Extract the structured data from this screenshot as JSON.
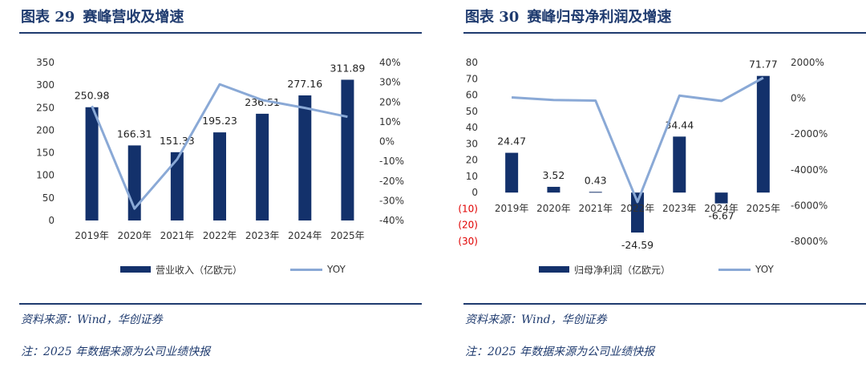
{
  "left": {
    "title_number": "图表 29",
    "title_text": "赛峰营收及增速",
    "legend_bar": "营业收入（亿欧元）",
    "legend_line": "YOY",
    "source": "资料来源：Wind，华创证券",
    "footnote": "注：2025 年数据来源为公司业绩快报"
  },
  "right": {
    "title_number": "图表 30",
    "title_text": "赛峰归母净利润及增速",
    "legend_bar": "归母净利润（亿欧元）",
    "legend_line": "YOY",
    "source": "资料来源：Wind，华创证券",
    "footnote": "注：2025 年数据来源为公司业绩快报"
  },
  "colors": {
    "bar": "#13316b",
    "line": "#8aa9d6",
    "title": "#1f3b6f",
    "negative_tick": "#e00000"
  },
  "chart_data": [
    {
      "type": "bar",
      "title": "赛峰营收及增速",
      "categories": [
        "2019年",
        "2020年",
        "2021年",
        "2022年",
        "2023年",
        "2024年",
        "2025年"
      ],
      "series": [
        {
          "name": "营业收入（亿欧元）",
          "type": "bar",
          "axis": "left",
          "values": [
            250.98,
            166.31,
            151.33,
            195.23,
            236.51,
            277.16,
            311.89
          ],
          "labels": [
            "250.98",
            "166.31",
            "151.33",
            "195.23",
            "236.51",
            "277.16",
            "311.89"
          ]
        },
        {
          "name": "YOY",
          "type": "line",
          "axis": "right",
          "values": [
            18,
            -34,
            -9,
            29,
            21,
            17,
            12.5
          ]
        }
      ],
      "y_left": {
        "min": 0,
        "max": 350,
        "ticks": [
          "0",
          "50",
          "100",
          "150",
          "200",
          "250",
          "300",
          "350"
        ]
      },
      "y_right": {
        "min": -40,
        "max": 40,
        "ticks": [
          "-40%",
          "-30%",
          "-20%",
          "-10%",
          "0%",
          "10%",
          "20%",
          "30%",
          "40%"
        ]
      },
      "legend": "bottom",
      "grid": false
    },
    {
      "type": "bar",
      "title": "赛峰归母净利润及增速",
      "categories": [
        "2019年",
        "2020年",
        "2021年",
        "2022年",
        "2023年",
        "2024年",
        "2025年"
      ],
      "series": [
        {
          "name": "归母净利润（亿欧元）",
          "type": "bar",
          "axis": "left",
          "values": [
            24.47,
            3.52,
            0.43,
            -24.59,
            34.44,
            -6.67,
            71.77
          ],
          "labels": [
            "24.47",
            "3.52",
            "0.43",
            "-24.59",
            "34.44",
            "-6.67",
            "71.77"
          ]
        },
        {
          "name": "YOY",
          "type": "line",
          "axis": "right",
          "values": [
            50,
            -100,
            -130,
            -5800,
            150,
            -150,
            1150
          ]
        }
      ],
      "y_left": {
        "min": -30,
        "max": 80,
        "ticks": [
          "(30)",
          "(20)",
          "(10)",
          "0",
          "10",
          "20",
          "30",
          "40",
          "50",
          "60",
          "70",
          "80"
        ]
      },
      "y_right": {
        "min": -8000,
        "max": 2000,
        "ticks": [
          "-8000%",
          "-6000%",
          "-4000%",
          "-2000%",
          "0%",
          "2000%"
        ]
      },
      "legend": "bottom",
      "grid": false
    }
  ]
}
